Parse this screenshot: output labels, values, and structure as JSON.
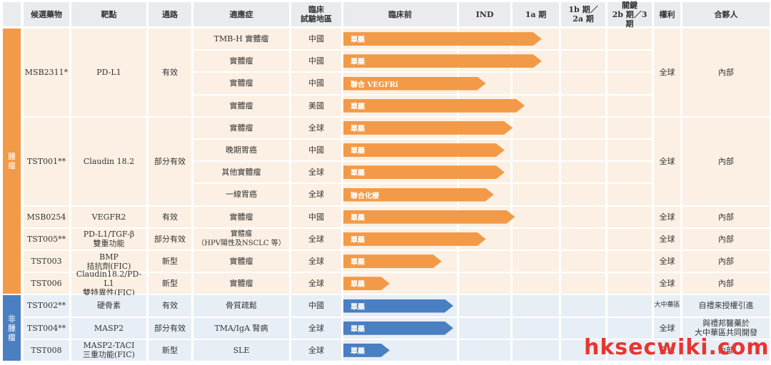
{
  "headers": {
    "candidate": "候選藥物",
    "target": "靶點",
    "pathway": "通路",
    "indication": "適應症",
    "region": "臨床\n試驗地區",
    "preclinical": "臨床前",
    "ind": "IND",
    "phase1a": "1a 期",
    "phase1b2a": "1b 期／\n2a 期",
    "pivotal": "關鍵\n2b 期／3 期",
    "rights": "權利",
    "partner": "合夥人"
  },
  "groups": {
    "oncology": "腫\n瘤",
    "non_oncology": "非\n腫\n瘤"
  },
  "drugs": [
    {
      "name": "MSB2311*",
      "target": "PD-L1",
      "pathway": "有效",
      "rights": "全球",
      "partner": "內部"
    },
    {
      "name": "TST001**",
      "target": "Claudin 18.2",
      "pathway": "部分有效",
      "rights": "全球",
      "partner": "內部"
    },
    {
      "name": "MSB0254",
      "target": "VEGFR2",
      "pathway": "有效",
      "rights": "全球",
      "partner": "內部"
    },
    {
      "name": "TST005**",
      "target": "PD-L1/TGF-β\n雙重功能",
      "pathway": "部分有效",
      "rights": "全球",
      "partner": "內部"
    },
    {
      "name": "TST003",
      "target": "BMP\n拮抗劑(FIC)",
      "pathway": "新型",
      "rights": "全球",
      "partner": "內部"
    },
    {
      "name": "TST006",
      "target": "Claudin18.2/PD-L1\n雙特異性(FIC)",
      "pathway": "新型",
      "rights": "全球",
      "partner": "內部"
    },
    {
      "name": "TST002**",
      "target": "硬骨素",
      "pathway": "有效",
      "rights": "大中華區",
      "partner": "自禮來授權引進"
    },
    {
      "name": "TST004**",
      "target": "MASP2",
      "pathway": "部分有效",
      "rights": "全球",
      "partner": "與禮邦醫藥於\n大中華區共同開發"
    },
    {
      "name": "TST008",
      "target": "MASP2-TACI\n三重功能(FIC)",
      "pathway": "新型",
      "rights": "全球",
      "partner": "內部"
    }
  ],
  "rows": [
    {
      "indication": "TMB-H 實體瘤",
      "region": "中國",
      "bar": "單藥",
      "progress_phase": 2.6
    },
    {
      "indication": "實體瘤",
      "region": "中國",
      "bar": "單藥",
      "progress_phase": 2.6
    },
    {
      "indication": "實體瘤",
      "region": "中國",
      "bar": "聯合 VEGFRi",
      "progress_phase": 1.5
    },
    {
      "indication": "實體瘤",
      "region": "美國",
      "bar": "單藥",
      "progress_phase": 2.25
    },
    {
      "indication": "實體瘤",
      "region": "全球",
      "bar": "單藥",
      "progress_phase": 2.0
    },
    {
      "indication": "晚期胃癌",
      "region": "中國",
      "bar": "單藥",
      "progress_phase": 1.85
    },
    {
      "indication": "其他實體瘤",
      "region": "全球",
      "bar": "單藥",
      "progress_phase": 1.85
    },
    {
      "indication": "一線胃癌",
      "region": "全球",
      "bar": "聯合化療",
      "progress_phase": 1.65
    },
    {
      "indication": "實體瘤",
      "region": "中國",
      "bar": "單藥",
      "progress_phase": 2.05
    },
    {
      "indication": "實體瘤\n（HPV陽性及NSCLC 等）",
      "region": "全球",
      "bar": "單藥",
      "progress_phase": 1.5
    },
    {
      "indication": "實體瘤",
      "region": "全球",
      "bar": "單藥",
      "progress_phase": 0.85
    },
    {
      "indication": "實體瘤",
      "region": "全球",
      "bar": "單藥",
      "progress_phase": 0.4
    },
    {
      "indication": "骨質疏鬆",
      "region": "中國",
      "bar": "單藥",
      "progress_phase": 0.95
    },
    {
      "indication": "TMA/IgA 腎病",
      "region": "全球",
      "bar": "單藥",
      "progress_phase": 0.95
    },
    {
      "indication": "SLE",
      "region": "全球",
      "bar": "單藥",
      "progress_phase": 0.4
    }
  ],
  "colors": {
    "oncology_accent": "#f29a47",
    "non_oncology_accent": "#4a7fc1"
  },
  "watermark": "hksecwiki.com"
}
